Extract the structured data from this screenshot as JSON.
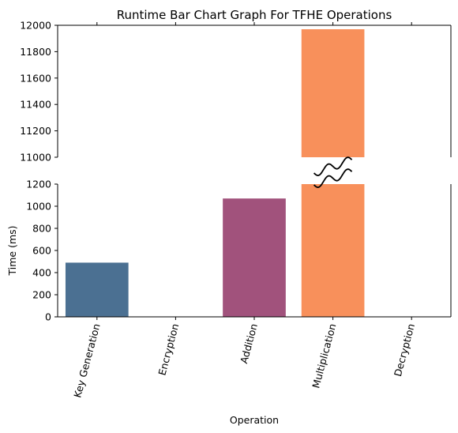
{
  "chart_data": {
    "type": "bar",
    "title": "Runtime  Bar Chart Graph For TFHE Operations",
    "xlabel": "Operation",
    "ylabel": "Time (ms)",
    "categories": [
      "Key Generation",
      "Encryption",
      "Addition",
      "Multiplication",
      "Decryption"
    ],
    "values": [
      490,
      0,
      1070,
      11970,
      0
    ],
    "colors": [
      "#4b7092",
      "#4b7092",
      "#a1527c",
      "#f8905b",
      "#f8905b"
    ],
    "broken_axis": true,
    "lower_ylim": [
      0,
      1200
    ],
    "upper_ylim": [
      11000,
      12000
    ],
    "lower_yticks": [
      0,
      200,
      400,
      600,
      800,
      1000,
      1200
    ],
    "upper_yticks": [
      11000,
      11200,
      11400,
      11600,
      11800,
      12000
    ],
    "grid": false
  }
}
